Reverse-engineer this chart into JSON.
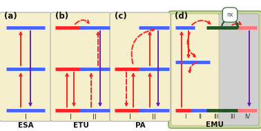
{
  "bg_yellow": "#f5efcc",
  "bg_green_outer": "#ccd8a0",
  "bg_gray": "#d0d0d0",
  "color_blue": "#4466ff",
  "color_red": "#ff2222",
  "color_purple": "#6622aa",
  "color_dark_green": "#225522",
  "color_salmon": "#ff7777",
  "panel_labels": [
    "(a)",
    "(b)",
    "(c)",
    "(d)"
  ],
  "bottom_labels": [
    "ESA",
    "ETU",
    "PA",
    "EMU"
  ],
  "roman_labels": [
    "I",
    "II",
    "III",
    "IV"
  ],
  "nx_label": "nx"
}
